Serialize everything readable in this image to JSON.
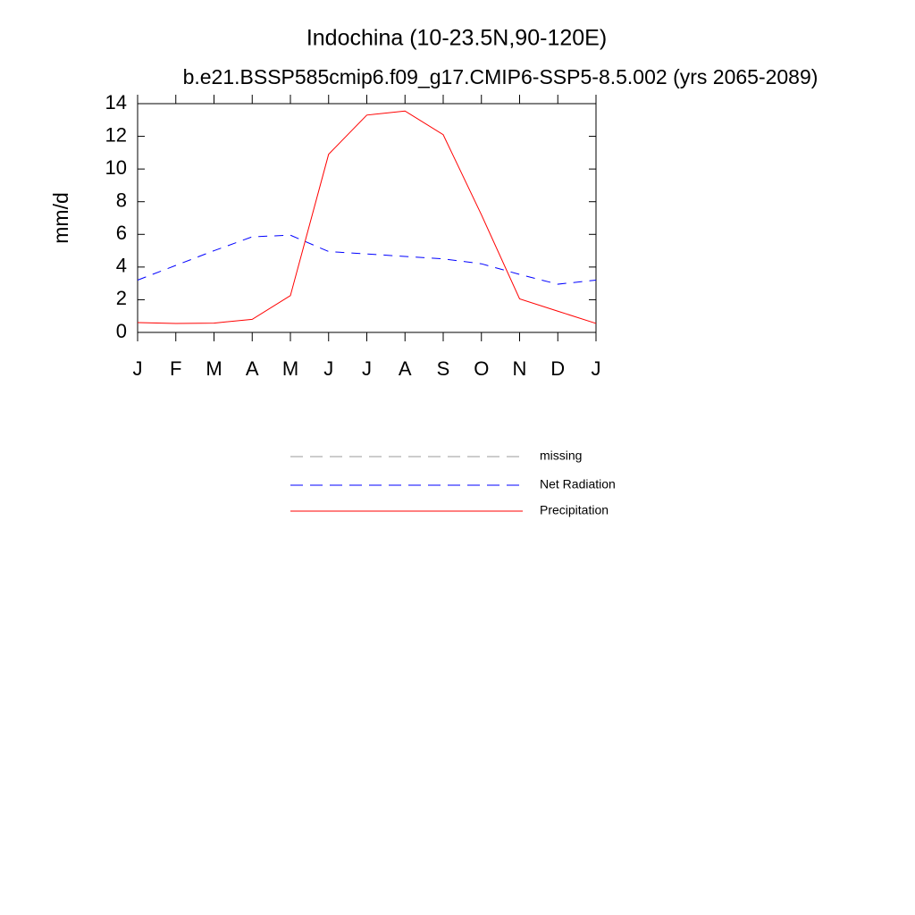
{
  "chart_data": {
    "type": "line",
    "title": "Indochina (10-23.5N,90-120E)",
    "subtitle": "b.e21.BSSP585cmip6.f09_g17.CMIP6-SSP5-8.5.002 (yrs 2065-2089)",
    "y_label": "mm/d",
    "categories": [
      "J",
      "F",
      "M",
      "A",
      "M",
      "J",
      "J",
      "A",
      "S",
      "O",
      "N",
      "D",
      "J"
    ],
    "ylim": [
      0,
      14
    ],
    "yticks": [
      0,
      2,
      4,
      6,
      8,
      10,
      12,
      14
    ],
    "series": [
      {
        "name": "missing",
        "color": "#999999",
        "dashed": true,
        "values": [
          null,
          null,
          null,
          null,
          null,
          null,
          null,
          null,
          null,
          null,
          null,
          null,
          null
        ]
      },
      {
        "name": "Net Radiation",
        "color": "#0000ff",
        "dashed": true,
        "values": [
          3.2,
          4.1,
          5.0,
          5.85,
          5.95,
          4.95,
          4.8,
          4.65,
          4.5,
          4.2,
          3.55,
          2.95,
          3.2
        ]
      },
      {
        "name": "Precipitation",
        "color": "#ff0000",
        "dashed": false,
        "values": [
          0.6,
          0.55,
          0.57,
          0.8,
          2.25,
          10.9,
          13.3,
          13.55,
          12.1,
          7.2,
          2.05,
          1.3,
          0.55
        ]
      }
    ]
  }
}
